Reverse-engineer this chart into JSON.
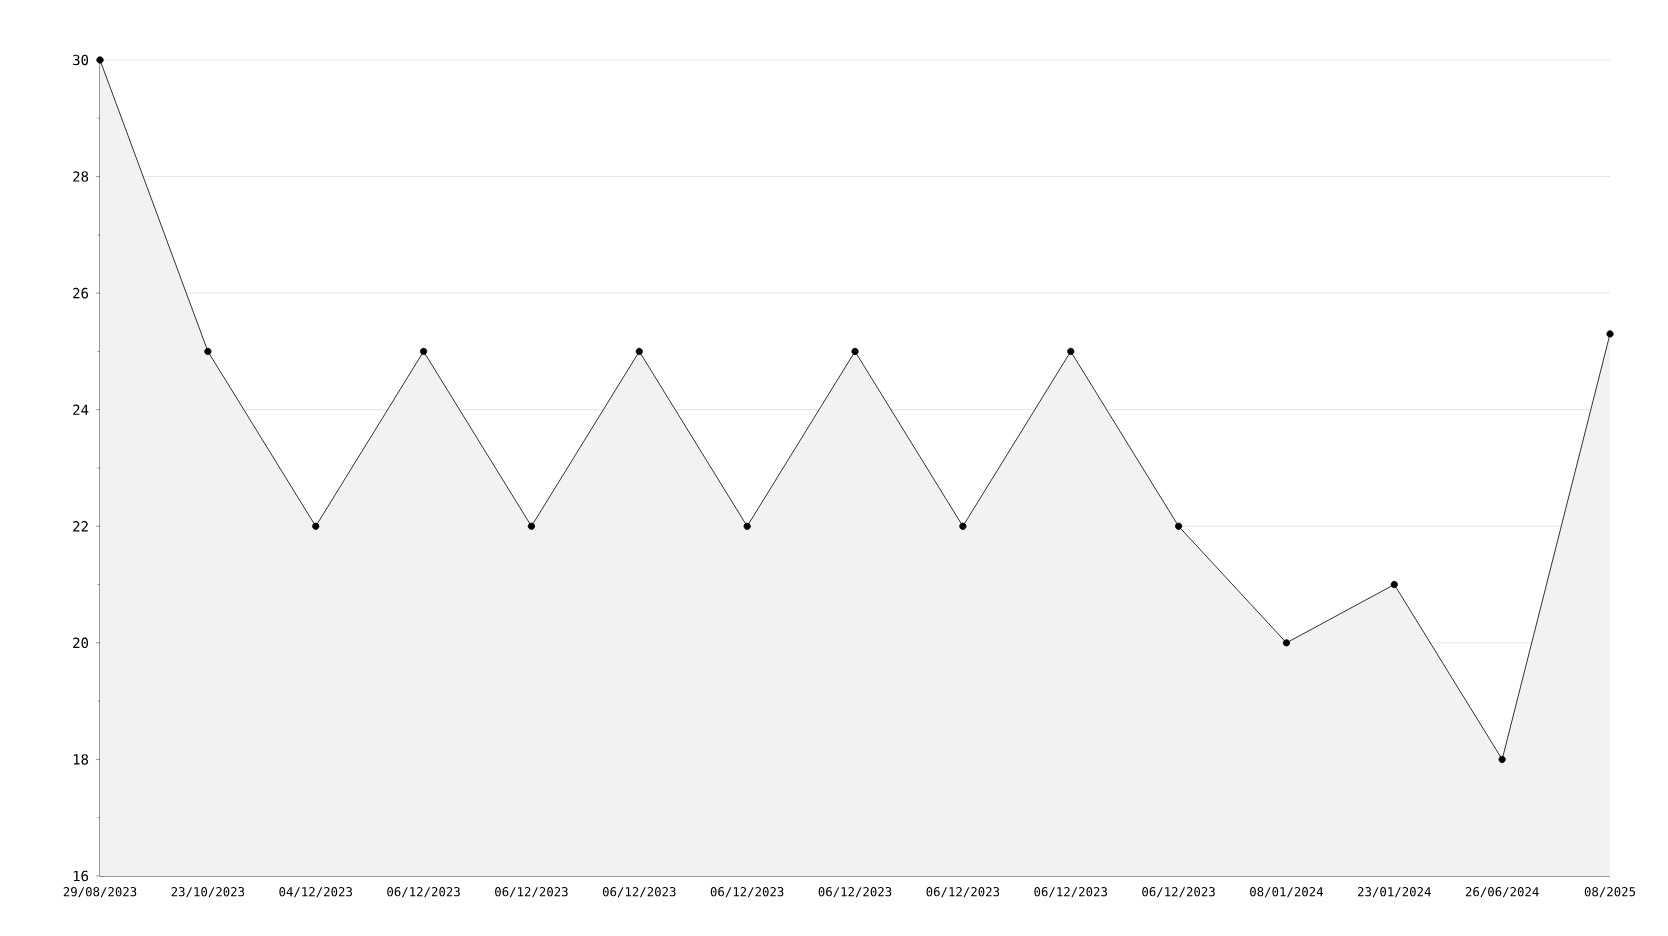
{
  "chart_data": {
    "type": "area",
    "categories": [
      "29/08/2023",
      "23/10/2023",
      "04/12/2023",
      "06/12/2023",
      "06/12/2023",
      "06/12/2023",
      "06/12/2023",
      "06/12/2023",
      "06/12/2023",
      "06/12/2023",
      "06/12/2023",
      "08/01/2024",
      "23/01/2024",
      "26/06/2024",
      "08/2025"
    ],
    "series": [
      {
        "color": "#000000",
        "values": [
          30,
          25,
          22,
          25,
          22,
          25,
          22,
          25,
          22,
          25,
          22,
          20,
          21,
          18,
          25.3
        ]
      }
    ],
    "ylim": [
      16,
      30
    ],
    "yticks": [
      16,
      18,
      20,
      22,
      24,
      26,
      28,
      30
    ],
    "grid": "y",
    "marker": "circle",
    "line_style": "solid"
  }
}
